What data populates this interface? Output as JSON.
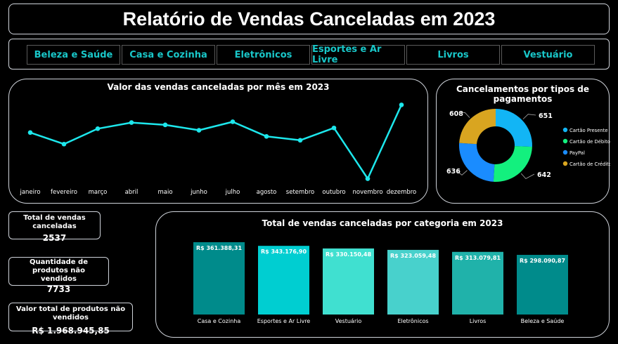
{
  "header": {
    "title": "Relatório de Vendas Canceladas em 2023"
  },
  "categories_nav": [
    "Beleza e Saúde",
    "Casa e Cozinha",
    "Eletrônicos",
    "Esportes e Ar Livre",
    "Livros",
    "Vestuário"
  ],
  "kpis": {
    "total_canceled": {
      "label": "Total de vendas canceladas",
      "value": "2537"
    },
    "unsold_qty": {
      "label": "Quantidade de produtos não vendidos",
      "value": "7733"
    },
    "unsold_value": {
      "label": "Valor total de produtos não vendidos",
      "value": "R$ 1.968.945,85"
    }
  },
  "colors": {
    "line": "#1de7ec",
    "title_text": "#ffffff",
    "nav_text": "#19c7c9"
  },
  "chart_data": [
    {
      "type": "line",
      "title": "Valor das vendas canceladas por mês em 2023",
      "categories": [
        "janeiro",
        "fevereiro",
        "março",
        "abril",
        "maio",
        "junho",
        "julho",
        "agosto",
        "setembro",
        "outubro",
        "novembro",
        "dezembro"
      ],
      "values": [
        165000,
        150000,
        170000,
        178000,
        175000,
        168000,
        179000,
        160000,
        155000,
        171000,
        105000,
        201000
      ],
      "ylim": [
        100000,
        205000
      ],
      "grid": false,
      "color": "#1de7ec"
    },
    {
      "type": "pie",
      "donut": true,
      "title": "Cancelamentos por tipos de pagamentos",
      "labels": [
        "Cartão Presente",
        "Cartão de Débito",
        "PayPal",
        "Cartão de Crédito"
      ],
      "values": [
        651,
        642,
        636,
        608
      ],
      "colors": [
        "#12b5f5",
        "#13f07e",
        "#1a8cff",
        "#d9a520"
      ],
      "legend": "right"
    },
    {
      "type": "bar",
      "title": "Total de vendas canceladas por categoria em 2023",
      "categories": [
        "Casa e Cozinha",
        "Esportes e Ar Livre",
        "Vestuário",
        "Eletrônicos",
        "Livros",
        "Beleza e Saúde"
      ],
      "values": [
        361388.31,
        343176.9,
        330150.48,
        323059.48,
        313079.81,
        298090.87
      ],
      "labels": [
        "R$ 361.388,31",
        "R$ 343.176,90",
        "R$ 330.150,48",
        "R$ 323.059,48",
        "R$ 313.079,81",
        "R$ 298.090,87"
      ],
      "colors": [
        "#008b8b",
        "#00ced1",
        "#40e0d0",
        "#48d1cc",
        "#20b2aa",
        "#008b8b"
      ],
      "ylim": [
        0,
        361388.31
      ]
    }
  ]
}
